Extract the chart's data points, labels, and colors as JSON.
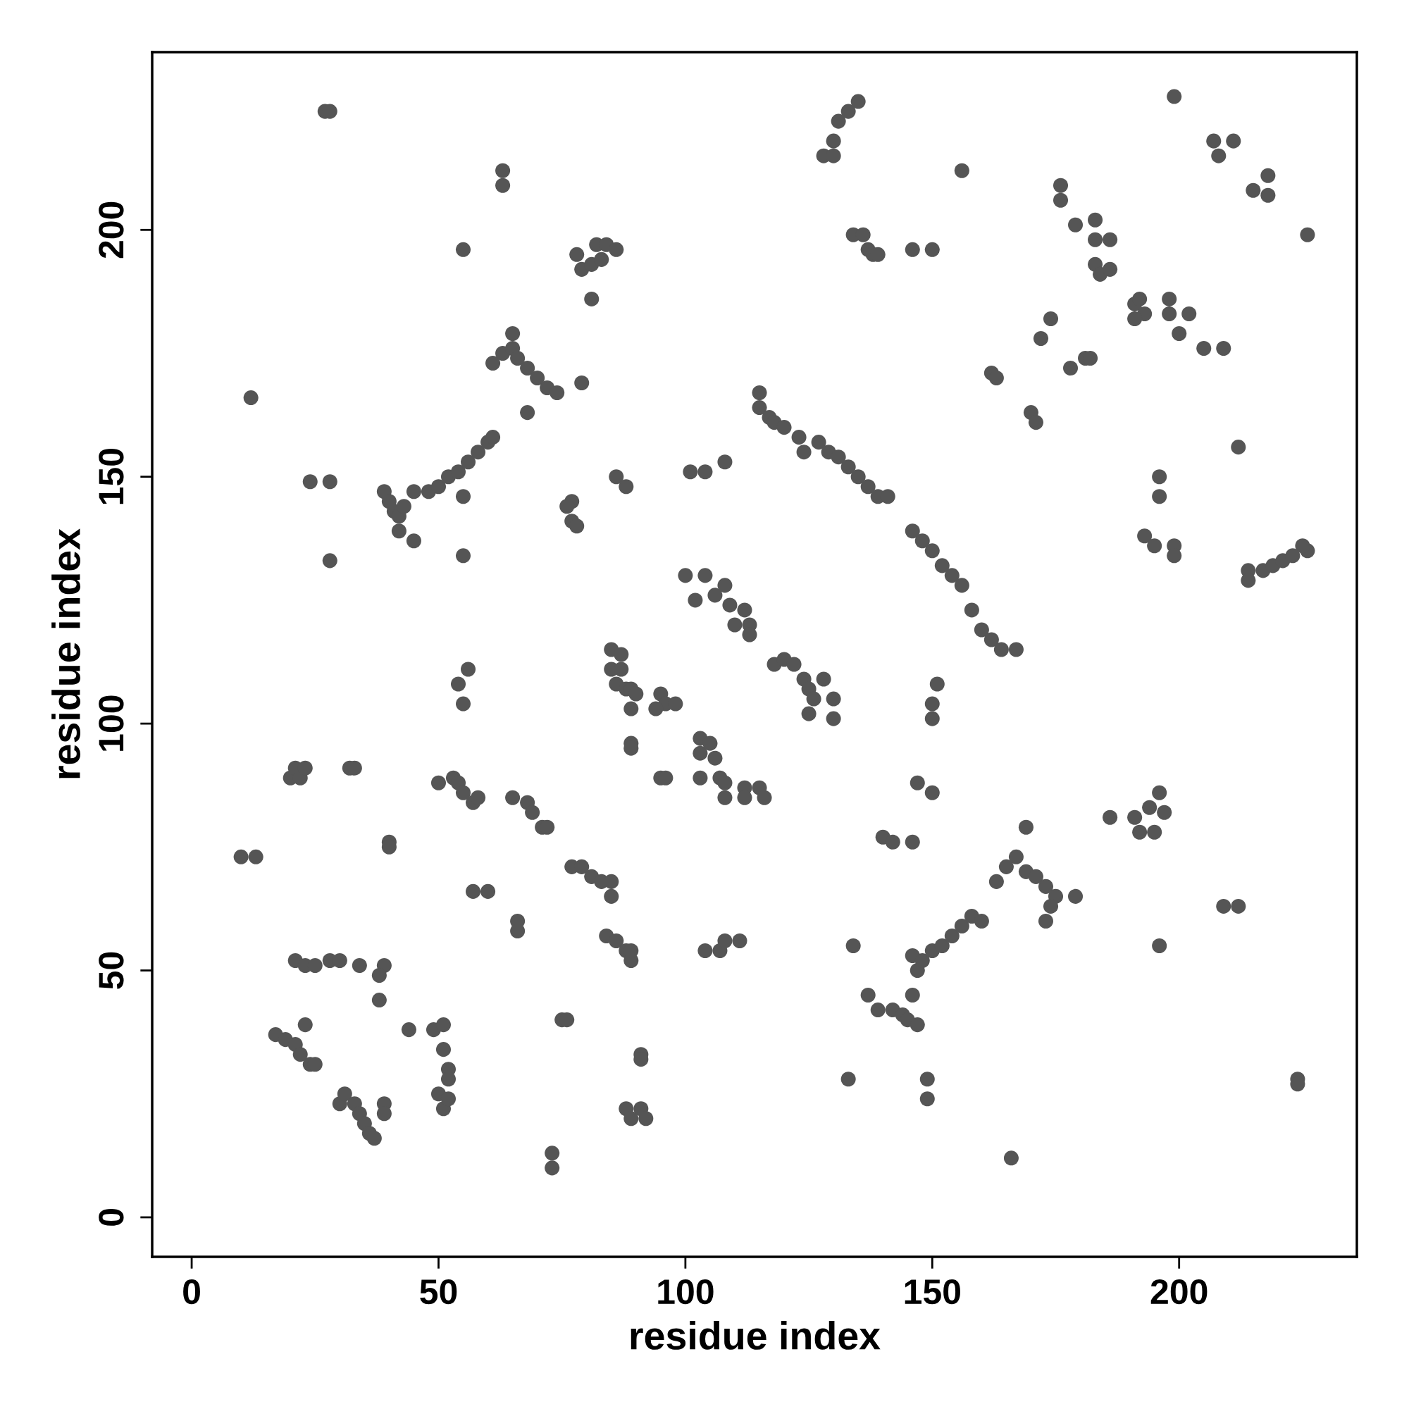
{
  "chart_data": {
    "type": "scatter",
    "xlabel": "residue index",
    "ylabel": "residue index",
    "xlim": [
      -8,
      236
    ],
    "ylim": [
      -8,
      236
    ],
    "xticks": [
      0,
      50,
      100,
      150,
      200
    ],
    "yticks": [
      0,
      50,
      100,
      150,
      200
    ],
    "grid": false,
    "legend": false,
    "marker": "circle",
    "series": [
      {
        "color": "#555555",
        "x": [
          10,
          13,
          12,
          27,
          28,
          24,
          28,
          28,
          20,
          21,
          22,
          23,
          32,
          33,
          21,
          23,
          25,
          28,
          30,
          34,
          39,
          38,
          38,
          17,
          19,
          21,
          22,
          24,
          25,
          23,
          30,
          31,
          33,
          34,
          35,
          36,
          37,
          39,
          39,
          44,
          49,
          51,
          51,
          52,
          52,
          50,
          51,
          52,
          40,
          40,
          39,
          40,
          41,
          42,
          43,
          42,
          45,
          45,
          48,
          50,
          52,
          54,
          56,
          58,
          60,
          61,
          55,
          55,
          55,
          54,
          55,
          56,
          53,
          54,
          55,
          57,
          58,
          50,
          57,
          60,
          61,
          63,
          65,
          66,
          68,
          70,
          72,
          74,
          68,
          65,
          63,
          63,
          66,
          66,
          65,
          68,
          69,
          71,
          72,
          77,
          79,
          81,
          83,
          85,
          85,
          77,
          76,
          77,
          78,
          78,
          79,
          81,
          82,
          84,
          83,
          86,
          81,
          79,
          84,
          86,
          88,
          89,
          89,
          75,
          76,
          73,
          73,
          88,
          89,
          91,
          92,
          91,
          91,
          85,
          87,
          85,
          87,
          86,
          88,
          89,
          90,
          89,
          89,
          89,
          95,
          96,
          98,
          94,
          95,
          96,
          86,
          88,
          101,
          104,
          108,
          100,
          102,
          104,
          106,
          108,
          109,
          110,
          112,
          113,
          113,
          103,
          103,
          105,
          106,
          107,
          103,
          108,
          108,
          112,
          112,
          115,
          116,
          104,
          107,
          108,
          111,
          115,
          115,
          117,
          118,
          120,
          123,
          124,
          127,
          129,
          131,
          133,
          135,
          137,
          139,
          141,
          118,
          120,
          122,
          124,
          125,
          126,
          125,
          128,
          130,
          130,
          128,
          130,
          131,
          133,
          135,
          130,
          134,
          136,
          137,
          138,
          139,
          146,
          150,
          156,
          146,
          148,
          150,
          152,
          154,
          156,
          158,
          160,
          162,
          164,
          167,
          151,
          150,
          150,
          147,
          150,
          140,
          142,
          146,
          137,
          139,
          142,
          144,
          145,
          147,
          146,
          146,
          147,
          148,
          150,
          152,
          154,
          156,
          158,
          160,
          134,
          133,
          149,
          149,
          163,
          165,
          167,
          169,
          171,
          173,
          175,
          174,
          173,
          179,
          169,
          166,
          162,
          163,
          170,
          171,
          172,
          174,
          176,
          176,
          178,
          179,
          181,
          182,
          183,
          183,
          183,
          184,
          186,
          186,
          191,
          192,
          193,
          191,
          198,
          198,
          200,
          202,
          205,
          209,
          199,
          207,
          208,
          211,
          215,
          218,
          218,
          212,
          226,
          193,
          195,
          196,
          196,
          199,
          199,
          186,
          191,
          192,
          194,
          195,
          196,
          197,
          209,
          212,
          196,
          214,
          214,
          217,
          219,
          221,
          223,
          226,
          225,
          224,
          224
        ],
        "values": [
          73,
          73,
          166,
          224,
          224,
          149,
          149,
          133,
          89,
          91,
          89,
          91,
          91,
          91,
          52,
          51,
          51,
          52,
          52,
          51,
          51,
          49,
          44,
          37,
          36,
          35,
          33,
          31,
          31,
          39,
          23,
          25,
          23,
          21,
          19,
          17,
          16,
          23,
          21,
          38,
          38,
          39,
          34,
          30,
          28,
          25,
          22,
          24,
          76,
          75,
          147,
          145,
          143,
          142,
          144,
          139,
          147,
          137,
          147,
          148,
          150,
          151,
          153,
          155,
          157,
          158,
          146,
          196,
          134,
          108,
          104,
          111,
          89,
          88,
          86,
          84,
          85,
          88,
          66,
          66,
          173,
          175,
          176,
          174,
          172,
          170,
          168,
          167,
          163,
          179,
          212,
          209,
          60,
          58,
          85,
          84,
          82,
          79,
          79,
          71,
          71,
          69,
          68,
          68,
          65,
          145,
          144,
          141,
          140,
          195,
          192,
          193,
          197,
          197,
          194,
          196,
          186,
          169,
          57,
          56,
          54,
          52,
          54,
          40,
          40,
          13,
          10,
          22,
          20,
          22,
          20,
          33,
          32,
          115,
          114,
          111,
          111,
          108,
          107,
          107,
          106,
          103,
          96,
          95,
          106,
          104,
          104,
          103,
          89,
          89,
          150,
          148,
          151,
          151,
          153,
          130,
          125,
          130,
          126,
          128,
          124,
          120,
          123,
          120,
          118,
          97,
          94,
          96,
          93,
          89,
          89,
          88,
          85,
          87,
          85,
          87,
          85,
          54,
          54,
          56,
          56,
          167,
          164,
          162,
          161,
          160,
          158,
          155,
          157,
          155,
          154,
          152,
          150,
          148,
          146,
          146,
          112,
          113,
          112,
          109,
          107,
          105,
          102,
          109,
          105,
          101,
          215,
          218,
          222,
          224,
          226,
          215,
          199,
          199,
          196,
          195,
          195,
          196,
          196,
          212,
          139,
          137,
          135,
          132,
          130,
          128,
          123,
          119,
          117,
          115,
          115,
          108,
          104,
          101,
          88,
          86,
          77,
          76,
          76,
          45,
          42,
          42,
          41,
          40,
          39,
          45,
          53,
          50,
          52,
          54,
          55,
          57,
          59,
          61,
          60,
          55,
          28,
          28,
          24,
          68,
          71,
          73,
          70,
          69,
          67,
          65,
          63,
          60,
          65,
          79,
          12,
          171,
          170,
          163,
          161,
          178,
          182,
          209,
          206,
          172,
          201,
          174,
          174,
          202,
          198,
          193,
          191,
          192,
          198,
          185,
          186,
          183,
          182,
          186,
          183,
          179,
          183,
          176,
          176,
          227,
          218,
          215,
          218,
          208,
          211,
          207,
          156,
          199,
          138,
          136,
          150,
          146,
          136,
          134,
          81,
          81,
          78,
          83,
          78,
          86,
          82,
          63,
          63,
          55,
          131,
          129,
          131,
          132,
          133,
          134,
          135,
          136,
          28,
          27
        ]
      }
    ]
  }
}
